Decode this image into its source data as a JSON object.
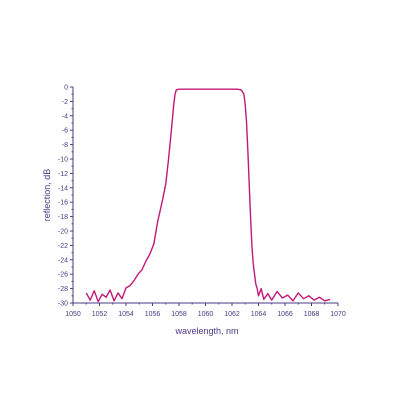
{
  "chart_data": {
    "type": "line",
    "title": "",
    "xlabel": "wavelength, nm",
    "ylabel": "reflection, dB",
    "xlim": [
      1050,
      1070
    ],
    "ylim": [
      -30,
      0
    ],
    "grid": false,
    "legend": "none",
    "x_ticks": [
      1050,
      1052,
      1054,
      1056,
      1058,
      1060,
      1062,
      1064,
      1066,
      1068,
      1070
    ],
    "y_ticks": [
      0,
      -2,
      -4,
      -6,
      -8,
      -10,
      -12,
      -14,
      -16,
      -18,
      -20,
      -22,
      -24,
      -26,
      -28,
      -30
    ],
    "x_tick_labels": [
      "1050",
      "1052",
      "1054",
      "1056",
      "1058",
      "1060",
      "1062",
      "1064",
      "1066",
      "1068",
      "1070"
    ],
    "y_tick_labels": [
      "0",
      "-2",
      "-4",
      "-6",
      "-8",
      "-10",
      "-12",
      "-14",
      "-16",
      "-18",
      "-20",
      "-22",
      "-24",
      "-26",
      "-28",
      "-30"
    ],
    "colors": {
      "line": "#c2187a",
      "axis": "#4b3a86"
    },
    "series": [
      {
        "x": [
          1051.0,
          1051.3,
          1051.6,
          1051.9,
          1052.2,
          1052.5,
          1052.8,
          1053.1,
          1053.4,
          1053.7,
          1054.0,
          1054.3,
          1054.6,
          1054.9,
          1055.2,
          1055.5,
          1055.8,
          1056.1,
          1056.4,
          1056.6,
          1056.8,
          1057.0,
          1057.2,
          1057.4,
          1057.5,
          1057.6,
          1057.7,
          1057.8,
          1058.0,
          1058.5,
          1059.0,
          1059.5,
          1060.0,
          1060.5,
          1061.0,
          1061.5,
          1062.0,
          1062.4,
          1062.7,
          1062.9,
          1063.0,
          1063.1,
          1063.2,
          1063.3,
          1063.4,
          1063.5,
          1063.6,
          1063.7,
          1063.8,
          1063.9,
          1064.0,
          1064.2,
          1064.4,
          1064.7,
          1065.0,
          1065.4,
          1065.8,
          1066.2,
          1066.6,
          1067.0,
          1067.4,
          1067.8,
          1068.2,
          1068.6,
          1069.0,
          1069.4
        ],
        "values": [
          -28.6,
          -29.6,
          -28.3,
          -29.8,
          -28.8,
          -29.2,
          -28.2,
          -29.7,
          -28.6,
          -29.4,
          -27.9,
          -27.6,
          -26.9,
          -26.0,
          -25.4,
          -24.2,
          -23.2,
          -21.8,
          -18.6,
          -17.0,
          -15.3,
          -13.5,
          -10.2,
          -6.5,
          -4.5,
          -2.5,
          -1.0,
          -0.4,
          -0.3,
          -0.3,
          -0.3,
          -0.3,
          -0.3,
          -0.3,
          -0.3,
          -0.3,
          -0.3,
          -0.3,
          -0.4,
          -1.0,
          -2.5,
          -5.0,
          -9.0,
          -13.5,
          -18.0,
          -22.0,
          -24.5,
          -26.0,
          -27.4,
          -28.0,
          -29.0,
          -28.0,
          -29.5,
          -28.7,
          -29.6,
          -28.4,
          -29.3,
          -28.9,
          -29.7,
          -28.6,
          -29.4,
          -29.0,
          -29.6,
          -29.2,
          -29.7,
          -29.5
        ]
      }
    ]
  }
}
